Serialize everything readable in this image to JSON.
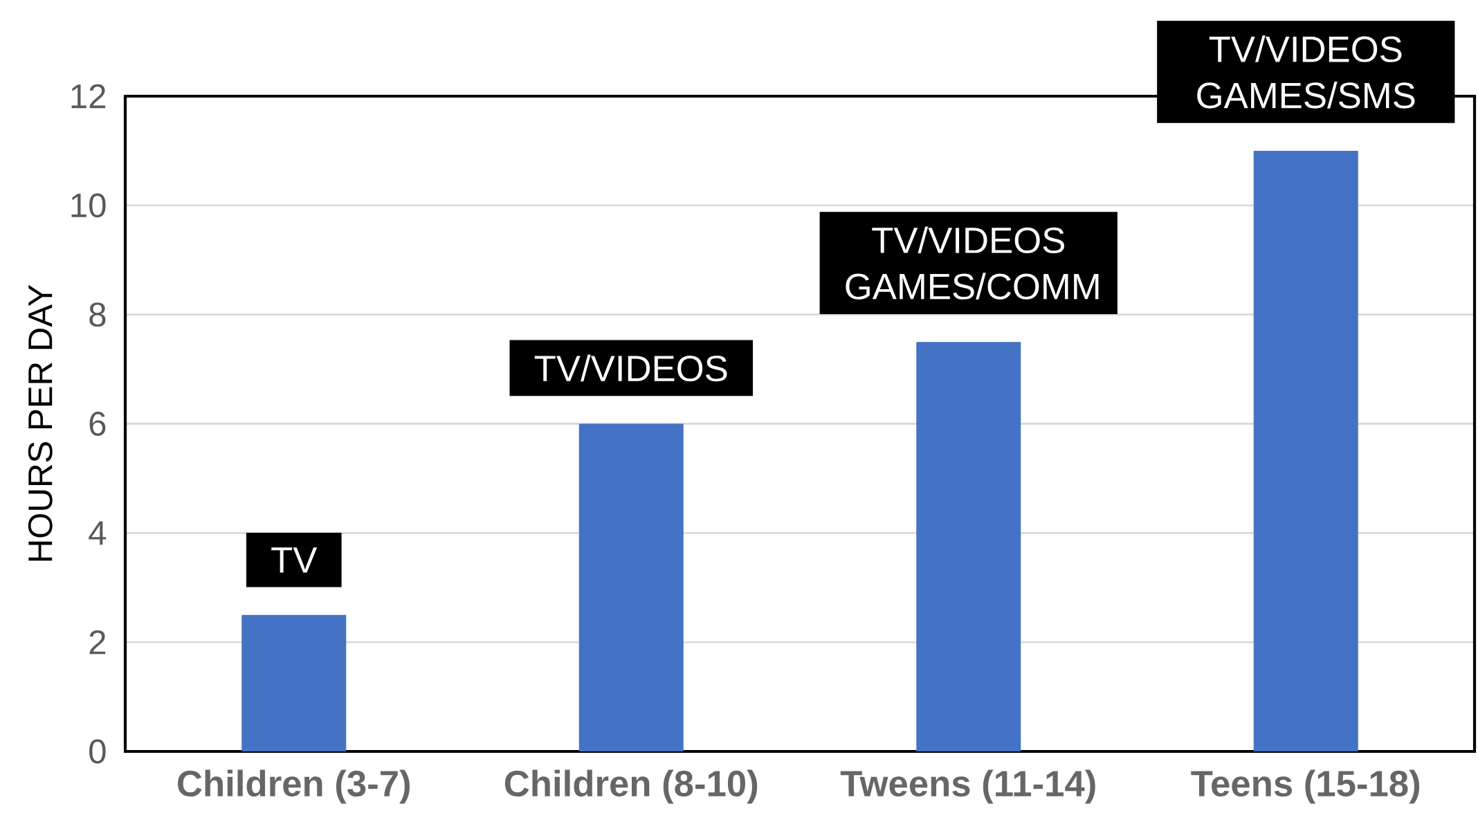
{
  "chart_data": {
    "type": "bar",
    "ylabel": "HOURS PER DAY",
    "categories": [
      "Children (3-7)",
      "Children (8-10)",
      "Tweens (11-14)",
      "Teens (15-18)"
    ],
    "values": [
      2.5,
      6,
      7.5,
      11
    ],
    "color": "#4472c4",
    "ylim": [
      0,
      12
    ],
    "yticks": [
      0,
      2,
      4,
      6,
      8,
      10,
      12
    ],
    "grid": "y",
    "annotations": [
      {
        "text": "TV",
        "x": "Children (3-7)",
        "y": 2.5
      },
      {
        "text": "TV/VIDEOS",
        "x": "Children (8-10)",
        "y": 6
      },
      {
        "text": "TV/VIDEOS GAMES/COMM",
        "x": "Tweens (11-14)",
        "y": 7.5
      },
      {
        "text": "TV/VIDEOS GAMES/SMS",
        "x": "Teens (15-18)",
        "y": 11
      }
    ]
  }
}
